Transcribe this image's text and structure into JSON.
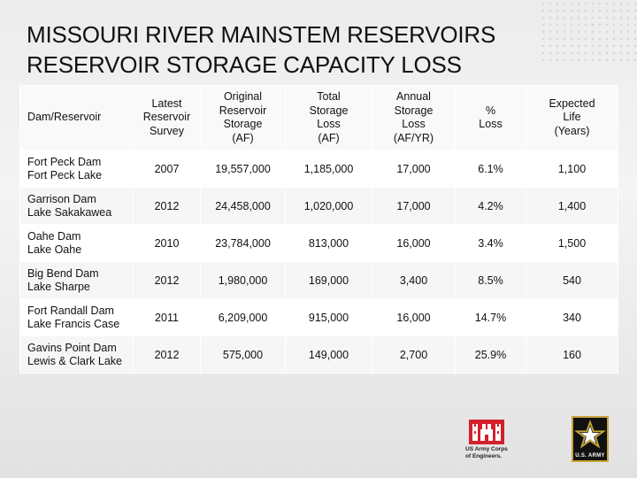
{
  "title": {
    "line1": "MISSOURI RIVER MAINSTEM RESERVOIRS",
    "line2": "RESERVOIR STORAGE CAPACITY LOSS"
  },
  "table": {
    "headers": [
      [
        "Dam/Reservoir"
      ],
      [
        "Latest",
        "Reservoir",
        "Survey"
      ],
      [
        "Original",
        "Reservoir",
        "Storage",
        "(AF)"
      ],
      [
        "Total",
        "Storage",
        "Loss",
        "(AF)"
      ],
      [
        "Annual",
        "Storage",
        "Loss",
        "(AF/YR)"
      ],
      [
        "%",
        "Loss"
      ],
      [
        "Expected",
        "Life",
        "(Years)"
      ]
    ],
    "rows": [
      {
        "dam": "Fort Peck Dam",
        "lake": "Fort Peck Lake",
        "survey": "2007",
        "original": "19,557,000",
        "total_loss": "1,185,000",
        "annual_loss": "17,000",
        "pct_loss": "6.1%",
        "life": "1,100"
      },
      {
        "dam": "Garrison Dam",
        "lake": "Lake Sakakawea",
        "survey": "2012",
        "original": "24,458,000",
        "total_loss": "1,020,000",
        "annual_loss": "17,000",
        "pct_loss": "4.2%",
        "life": "1,400"
      },
      {
        "dam": "Oahe Dam",
        "lake": "Lake Oahe",
        "survey": "2010",
        "original": "23,784,000",
        "total_loss": "813,000",
        "annual_loss": "16,000",
        "pct_loss": "3.4%",
        "life": "1,500"
      },
      {
        "dam": "Big Bend Dam",
        "lake": "Lake Sharpe",
        "survey": "2012",
        "original": "1,980,000",
        "total_loss": "169,000",
        "annual_loss": "3,400",
        "pct_loss": "8.5%",
        "life": "540"
      },
      {
        "dam": "Fort Randall Dam",
        "lake": "Lake Francis Case",
        "survey": "2011",
        "original": "6,209,000",
        "total_loss": "915,000",
        "annual_loss": "16,000",
        "pct_loss": "14.7%",
        "life": "340"
      },
      {
        "dam": "Gavins Point Dam",
        "lake": "Lewis & Clark Lake",
        "survey": "2012",
        "original": "575,000",
        "total_loss": "149,000",
        "annual_loss": "2,700",
        "pct_loss": "25.9%",
        "life": "160"
      }
    ]
  },
  "logos": {
    "usace_caption_line1": "US Army Corps",
    "usace_caption_line2": "of Engineers.",
    "usace_color": "#d4202a",
    "army_label": "U.S. ARMY",
    "army_gold": "#c7a43a",
    "army_icon": "star-icon",
    "usace_icon": "castle-icon"
  }
}
